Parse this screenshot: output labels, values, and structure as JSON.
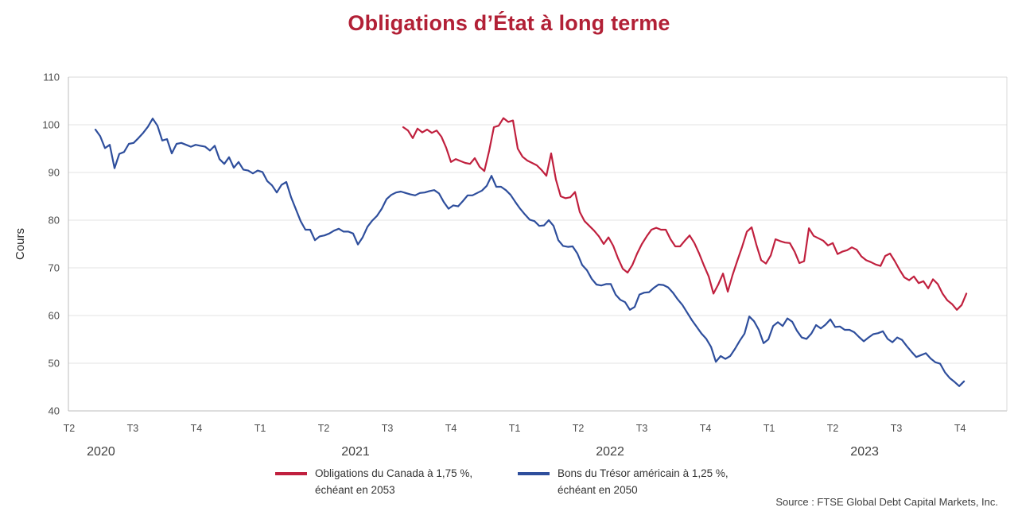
{
  "title": {
    "text": "Obligations d’État à long terme",
    "color": "#b22036"
  },
  "chart_data": {
    "type": "line",
    "title": "Obligations d’État à long terme",
    "xlabel": "",
    "ylabel": "Cours",
    "ylim": [
      40,
      110
    ],
    "ytick_step": 10,
    "xlim": [
      2020.247,
      2023.934
    ],
    "x_unit": "decimal_year",
    "grid": "horizontal",
    "legend_position": "bottom",
    "x_ticks": [
      {
        "x": 2020.25,
        "label": "T2"
      },
      {
        "x": 2020.5,
        "label": "T3"
      },
      {
        "x": 2020.75,
        "label": "T4"
      },
      {
        "x": 2021.0,
        "label": "T1"
      },
      {
        "x": 2021.25,
        "label": "T2"
      },
      {
        "x": 2021.5,
        "label": "T3"
      },
      {
        "x": 2021.75,
        "label": "T4"
      },
      {
        "x": 2022.0,
        "label": "T1"
      },
      {
        "x": 2022.25,
        "label": "T2"
      },
      {
        "x": 2022.5,
        "label": "T3"
      },
      {
        "x": 2022.75,
        "label": "T4"
      },
      {
        "x": 2023.0,
        "label": "T1"
      },
      {
        "x": 2023.25,
        "label": "T2"
      },
      {
        "x": 2023.5,
        "label": "T3"
      },
      {
        "x": 2023.75,
        "label": "T4"
      }
    ],
    "year_labels": [
      {
        "x": 2020.375,
        "label": "2020"
      },
      {
        "x": 2021.375,
        "label": "2021"
      },
      {
        "x": 2022.375,
        "label": "2022"
      },
      {
        "x": 2023.375,
        "label": "2023"
      }
    ],
    "series": [
      {
        "id": "canada-bond",
        "name": "Obligations du Canada à 1,75 %, échéant en 2053",
        "color": "#c0203e",
        "x_start": 2021.5625,
        "x_step": 0.01875,
        "values": [
          99.5,
          98.8,
          97.2,
          99.2,
          98.4,
          99.0,
          98.3,
          98.8,
          97.5,
          95.2,
          92.2,
          92.8,
          92.4,
          92.0,
          91.8,
          93.0,
          91.2,
          90.3,
          94.5,
          99.5,
          99.8,
          101.4,
          100.6,
          100.9,
          95.0,
          93.3,
          92.5,
          92.0,
          91.5,
          90.5,
          89.3,
          94.0,
          88.5,
          85.0,
          84.6,
          84.8,
          85.9,
          81.7,
          79.8,
          78.8,
          77.8,
          76.6,
          75.0,
          76.4,
          74.6,
          72.0,
          69.8,
          69.0,
          70.6,
          73.0,
          75.0,
          76.6,
          78.0,
          78.4,
          78.0,
          78.0,
          76.0,
          74.5,
          74.5,
          75.7,
          76.8,
          75.2,
          73.0,
          70.5,
          68.2,
          64.6,
          66.5,
          68.8,
          65.0,
          68.5,
          71.5,
          74.4,
          77.6,
          78.5,
          74.8,
          71.6,
          70.9,
          72.6,
          76.0,
          75.6,
          75.3,
          75.2,
          73.4,
          71.0,
          71.4,
          78.3,
          76.7,
          76.2,
          75.7,
          74.7,
          75.2,
          72.9,
          73.4,
          73.7,
          74.3,
          73.8,
          72.4,
          71.6,
          71.2,
          70.7,
          70.4,
          72.5,
          73.0,
          71.4,
          69.6,
          68.0,
          67.4,
          68.2,
          66.8,
          67.2,
          65.7,
          67.6,
          66.6,
          64.6,
          63.2,
          62.4,
          61.2,
          62.2,
          64.6
        ]
      },
      {
        "id": "us-treasury",
        "name": "Bons du Trésor américain à 1,25 %, échéant en 2050",
        "color": "#2e4e9c",
        "x_start": 2020.3531,
        "x_step": 0.01875,
        "values": [
          99.0,
          97.6,
          95.1,
          95.8,
          90.9,
          93.9,
          94.3,
          96.0,
          96.2,
          97.2,
          98.3,
          99.6,
          101.3,
          99.8,
          96.7,
          97.0,
          94.0,
          96.0,
          96.2,
          95.8,
          95.4,
          95.8,
          95.6,
          95.4,
          94.6,
          95.6,
          92.8,
          91.8,
          93.2,
          91.0,
          92.2,
          90.6,
          90.4,
          89.8,
          90.4,
          90.1,
          88.2,
          87.3,
          85.8,
          87.4,
          88.0,
          84.8,
          82.3,
          79.8,
          78.0,
          78.0,
          75.8,
          76.6,
          76.8,
          77.2,
          77.8,
          78.2,
          77.6,
          77.6,
          77.2,
          74.9,
          76.4,
          78.6,
          79.9,
          80.9,
          82.4,
          84.4,
          85.3,
          85.8,
          86.0,
          85.7,
          85.4,
          85.2,
          85.7,
          85.8,
          86.1,
          86.3,
          85.6,
          83.8,
          82.4,
          83.1,
          82.9,
          84.0,
          85.2,
          85.2,
          85.7,
          86.2,
          87.2,
          89.3,
          87.0,
          87.0,
          86.3,
          85.3,
          83.8,
          82.4,
          81.2,
          80.1,
          79.8,
          78.8,
          78.9,
          80.0,
          78.8,
          75.8,
          74.6,
          74.4,
          74.5,
          73.0,
          70.6,
          69.5,
          67.7,
          66.5,
          66.3,
          66.6,
          66.6,
          64.4,
          63.3,
          62.8,
          61.2,
          61.8,
          64.4,
          64.8,
          64.9,
          65.8,
          66.5,
          66.4,
          65.9,
          64.8,
          63.4,
          62.2,
          60.6,
          59.0,
          57.6,
          56.2,
          55.1,
          53.4,
          50.3,
          51.5,
          50.9,
          51.5,
          53.0,
          54.7,
          56.2,
          59.8,
          58.8,
          57.0,
          54.2,
          55.0,
          57.8,
          58.6,
          57.8,
          59.4,
          58.7,
          56.8,
          55.4,
          55.1,
          56.2,
          58.0,
          57.3,
          58.1,
          59.2,
          57.6,
          57.7,
          57.0,
          57.0,
          56.5,
          55.5,
          54.6,
          55.4,
          56.1,
          56.3,
          56.7,
          55.1,
          54.4,
          55.4,
          54.9,
          53.6,
          52.4,
          51.3,
          51.7,
          52.1,
          51.0,
          50.2,
          49.9,
          48.1,
          46.9,
          46.1,
          45.2,
          46.2
        ]
      }
    ]
  },
  "legend": {
    "items": [
      {
        "line1": "Obligations du Canada à 1,75 %,",
        "line2": "échéant en 2053",
        "color": "#c0203e"
      },
      {
        "line1": "Bons du Trésor américain à 1,25 %,",
        "line2": "échéant en 2050",
        "color": "#2e4e9c"
      }
    ]
  },
  "source": {
    "text": "Source : FTSE Global Debt Capital Markets, Inc."
  }
}
